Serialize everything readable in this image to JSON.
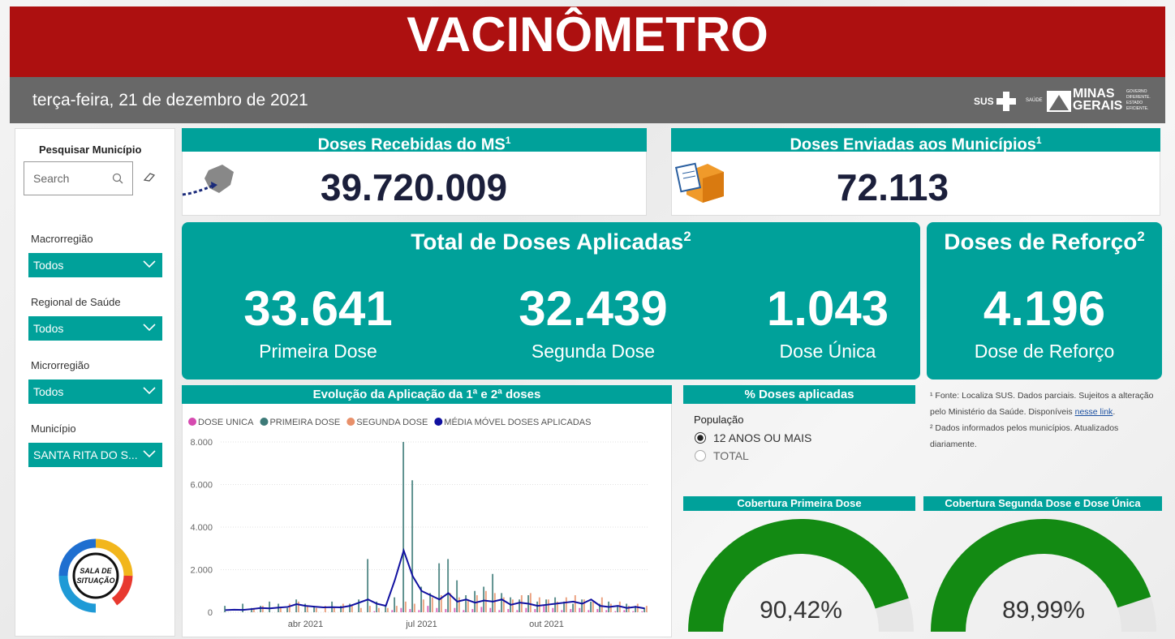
{
  "header": {
    "title": "VACINÔMETRO",
    "date": "terça-feira, 21 de dezembro de 2021",
    "logos": {
      "sus": "SUS",
      "saude": "SAÚDE",
      "minas": "MINAS",
      "gerais": "GERAIS",
      "slogan": "GOVERNO DIFERENTE. ESTADO EFICIENTE."
    }
  },
  "sidebar": {
    "search_title": "Pesquisar Município",
    "search_placeholder": "Search",
    "filters": [
      {
        "label": "Macrorregião",
        "value": "Todos"
      },
      {
        "label": "Regional de Saúde",
        "value": "Todos"
      },
      {
        "label": "Microrregião",
        "value": "Todos"
      },
      {
        "label": "Município",
        "value": "SANTA RITA DO S..."
      }
    ],
    "logo_text": [
      "SALA DE",
      "SITUAÇÃO"
    ]
  },
  "cards": {
    "received": {
      "title": "Doses Recebidas do MS",
      "note": "1",
      "value": "39.720.009"
    },
    "sent": {
      "title": "Doses Enviadas aos Municípios",
      "note": "1",
      "value": "72.113"
    },
    "applied": {
      "title": "Total de Doses Aplicadas",
      "note": "2",
      "items": [
        {
          "value": "33.641",
          "label": "Primeira Dose"
        },
        {
          "value": "32.439",
          "label": "Segunda Dose"
        },
        {
          "value": "1.043",
          "label": "Dose Única"
        }
      ]
    },
    "booster": {
      "title": "Doses de Reforço",
      "note": "2",
      "value": "4.196",
      "label": "Dose de Reforço"
    }
  },
  "evolution_chart": {
    "type": "combo",
    "title": "Evolução da Aplicação da 1ª e 2ª doses",
    "categories": [
      null,
      null,
      null,
      null,
      null,
      null,
      null,
      null,
      null,
      "abr 2021",
      null,
      null,
      null,
      null,
      null,
      null,
      null,
      null,
      null,
      null,
      null,
      null,
      "jul 2021",
      null,
      null,
      null,
      null,
      null,
      null,
      null,
      null,
      null,
      null,
      null,
      null,
      null,
      "out 2021",
      null,
      null,
      null,
      null,
      null,
      null,
      null,
      null,
      null,
      null,
      null
    ],
    "series": [
      {
        "name": "DOSE UNICA",
        "color": "#d64ab0",
        "mark": "bar",
        "values": [
          0,
          0,
          0,
          0,
          0,
          0,
          0,
          0,
          0,
          0,
          0,
          0,
          0,
          0,
          0,
          0,
          0,
          50,
          0,
          100,
          200,
          150,
          100,
          300,
          200,
          150,
          200,
          100,
          150,
          250,
          200,
          100,
          150,
          100,
          200,
          150,
          300,
          200,
          100,
          150,
          200,
          100,
          150,
          100,
          50,
          100,
          50,
          50
        ]
      },
      {
        "name": "PRIMEIRA DOSE",
        "color": "#3d7a78",
        "mark": "bar",
        "values": [
          300,
          0,
          400,
          200,
          300,
          500,
          400,
          200,
          600,
          400,
          300,
          0,
          500,
          300,
          400,
          600,
          2500,
          500,
          300,
          700,
          8000,
          6200,
          1200,
          900,
          2300,
          2500,
          1500,
          800,
          1000,
          1200,
          1800,
          900,
          700,
          600,
          800,
          500,
          600,
          700,
          500,
          400,
          600,
          500,
          400,
          500,
          300,
          400,
          300,
          200
        ]
      },
      {
        "name": "SEGUNDA DOSE",
        "color": "#e8906a",
        "mark": "bar",
        "values": [
          0,
          0,
          0,
          200,
          300,
          0,
          200,
          400,
          500,
          300,
          200,
          300,
          200,
          400,
          300,
          200,
          300,
          200,
          200,
          300,
          500,
          400,
          600,
          700,
          800,
          900,
          700,
          600,
          800,
          1000,
          900,
          700,
          600,
          800,
          900,
          700,
          600,
          500,
          700,
          800,
          600,
          500,
          700,
          400,
          500,
          300,
          400,
          300
        ]
      },
      {
        "name": "MÉDIA MÓVEL DOSES APLICADAS",
        "color": "#1010a0",
        "mark": "line",
        "values": [
          100,
          120,
          110,
          150,
          200,
          180,
          220,
          250,
          380,
          300,
          260,
          230,
          240,
          230,
          300,
          450,
          600,
          400,
          300,
          1500,
          2900,
          1700,
          1000,
          800,
          600,
          900,
          500,
          600,
          450,
          550,
          500,
          600,
          350,
          450,
          400,
          300,
          350,
          400,
          450,
          500,
          400,
          600,
          300,
          250,
          300,
          200,
          250,
          180
        ]
      }
    ],
    "ylim": [
      0,
      8000
    ],
    "yticks": [
      0,
      {
        "value": 2000,
        "label": "2.000"
      },
      {
        "value": 4000,
        "label": "4.000"
      },
      {
        "value": 6000,
        "label": "6.000"
      },
      {
        "value": 8000,
        "label": "8.000"
      }
    ],
    "grid": true
  },
  "percent_panel": {
    "title": "% Doses aplicadas",
    "filter_label": "População",
    "options": [
      "12 ANOS OU MAIS",
      "TOTAL"
    ],
    "selected": 0
  },
  "gauges": [
    {
      "type": "gauge",
      "title": "Cobertura Primeira Dose",
      "value": 90.42,
      "value_label": "90,42%",
      "range": [
        0,
        100
      ],
      "color": "#138a13"
    },
    {
      "type": "gauge",
      "title": "Cobertura Segunda Dose e Dose Única",
      "value": 89.99,
      "value_label": "89,99%",
      "range": [
        0,
        100
      ],
      "color": "#138a13"
    }
  ],
  "footnotes": {
    "note1": "¹ Fonte: Localiza SUS. Dados parciais. Sujeitos a alteração pelo Ministério da Saúde. Disponíveis",
    "link": "nesse link",
    "note1_end": ".",
    "note2": "² Dados informados pelos municípios. Atualizados diariamente."
  }
}
